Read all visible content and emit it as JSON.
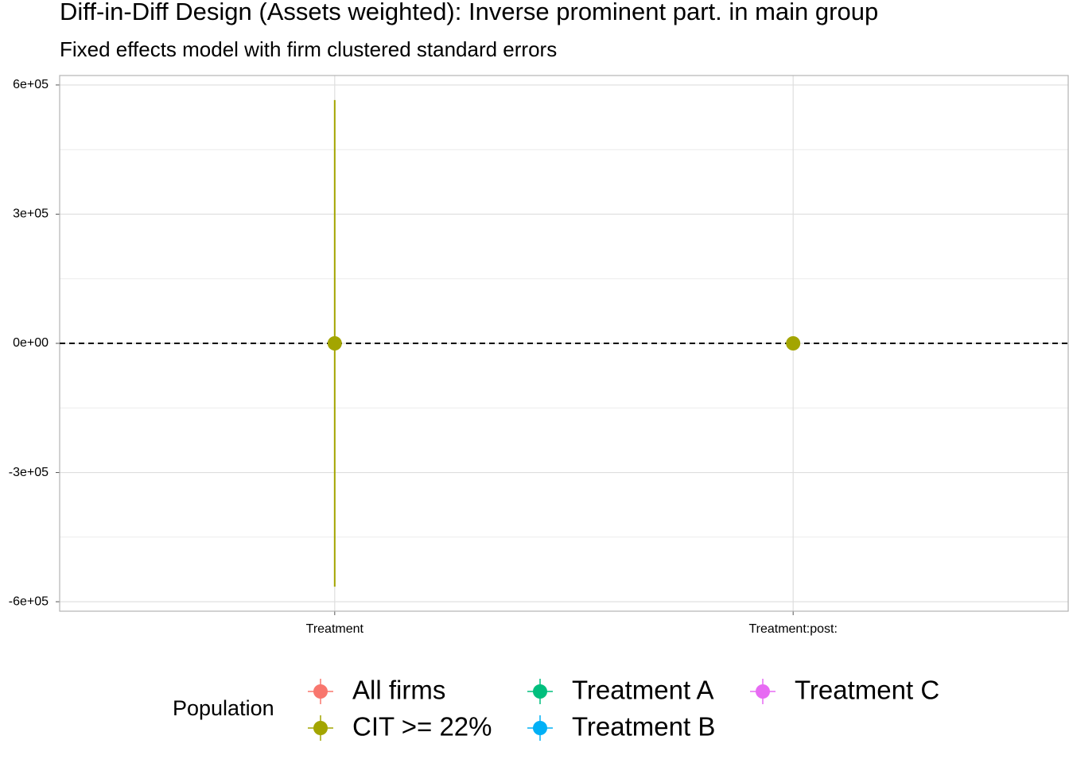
{
  "chart_data": {
    "type": "pointrange",
    "title": "Diff-in-Diff Design (Assets weighted): Inverse prominent part. in main group",
    "subtitle": "Fixed effects model with firm clustered standard errors",
    "categories": [
      "Treatment",
      "Treatment:post:"
    ],
    "series": [
      {
        "name": "All firms",
        "color": "#F8766D",
        "values": [
          null,
          null
        ],
        "errors": [
          null,
          null
        ]
      },
      {
        "name": "CIT >= 22%",
        "color": "#A3A500",
        "values": [
          0,
          0
        ],
        "errors": [
          565000,
          0
        ]
      },
      {
        "name": "Treatment A",
        "color": "#00BF7D",
        "values": [
          null,
          null
        ],
        "errors": [
          null,
          null
        ]
      },
      {
        "name": "Treatment B",
        "color": "#00B0F6",
        "values": [
          null,
          null
        ],
        "errors": [
          null,
          null
        ]
      },
      {
        "name": "Treatment C",
        "color": "#E76BF3",
        "values": [
          null,
          null
        ],
        "errors": [
          null,
          null
        ]
      }
    ],
    "ylim": [
      -622000,
      622000
    ],
    "yticks": [
      {
        "value": -600000,
        "label": "-6e+05"
      },
      {
        "value": -300000,
        "label": "-3e+05"
      },
      {
        "value": 0,
        "label": "0e+00"
      },
      {
        "value": 300000,
        "label": "3e+05"
      },
      {
        "value": 600000,
        "label": "6e+05"
      }
    ],
    "y_minor_ticks": [
      -450000,
      -150000,
      150000,
      450000
    ],
    "reference_line": 0,
    "grid": true,
    "legend_title": "Population",
    "legend_position": "bottom"
  }
}
